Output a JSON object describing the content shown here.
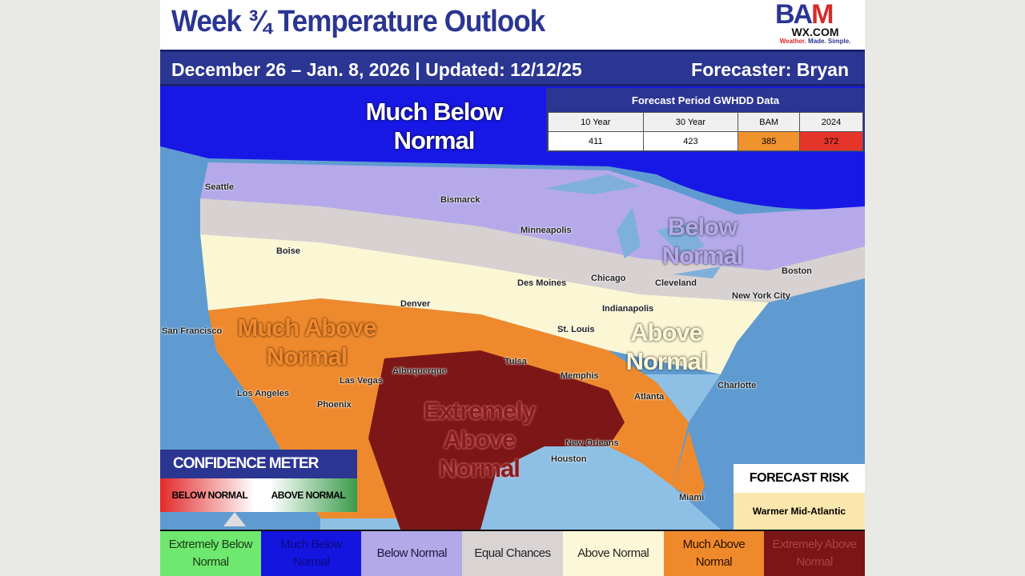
{
  "title": "Week ¾ Temperature Outlook",
  "logo": {
    "main": "BAM",
    "sub": "WX.COM",
    "tagline": "Weather. Made. Simple."
  },
  "header": {
    "period": "December 26 – Jan. 8, 2026 | Updated: 12/12/25",
    "forecaster": "Forecaster: Bryan"
  },
  "gwhdd": {
    "title": "Forecast Period GWHDD Data",
    "columns": [
      "10 Year",
      "30 Year",
      "BAM",
      "2024"
    ],
    "values": [
      "411",
      "423",
      "385",
      "372"
    ],
    "colors": [
      "#ffffff",
      "#ffffff",
      "#f0932f",
      "#e5342a"
    ]
  },
  "regions": {
    "much_below": "Much Below Normal",
    "below": "Below Normal",
    "much_above": "Much Above Normal",
    "above": "Above Normal",
    "extremely_above": "Extremely Above Normal"
  },
  "cities": [
    "Seattle",
    "Bismarck",
    "Minneapolis",
    "Boise",
    "Des Moines",
    "Chicago",
    "Cleveland",
    "Boston",
    "New York City",
    "Indianapolis",
    "Denver",
    "St. Louis",
    "San Francisco",
    "Las Vegas",
    "Tulsa",
    "Albuquerque",
    "Memphis",
    "Charlotte",
    "Los Angeles",
    "Phoenix",
    "Atlanta",
    "Houston",
    "New Orleans",
    "Miami"
  ],
  "confidence": {
    "title": "CONFIDENCE METER",
    "left": "BELOW NORMAL",
    "right": "ABOVE NORMAL",
    "level": 0.38
  },
  "forecast_risk": {
    "title": "FORECAST RISK",
    "value": "Warmer Mid-Atlantic"
  },
  "legend": [
    {
      "label": "Extremely Below Normal",
      "color": "#6ee86e",
      "text": "#1a3a1a"
    },
    {
      "label": "Much Below Normal",
      "color": "#1515e0",
      "text": "#0a0a80"
    },
    {
      "label": "Below Normal",
      "color": "#b3a8e8",
      "text": "#1a1a40"
    },
    {
      "label": "Equal Chances",
      "color": "#d9d3d3",
      "text": "#222"
    },
    {
      "label": "Above Normal",
      "color": "#fcf7d6",
      "text": "#222"
    },
    {
      "label": "Much Above Normal",
      "color": "#ef8a2c",
      "text": "#2a1000"
    },
    {
      "label": "Extremely Above Normal",
      "color": "#7a1616",
      "text": "#b04040"
    }
  ]
}
